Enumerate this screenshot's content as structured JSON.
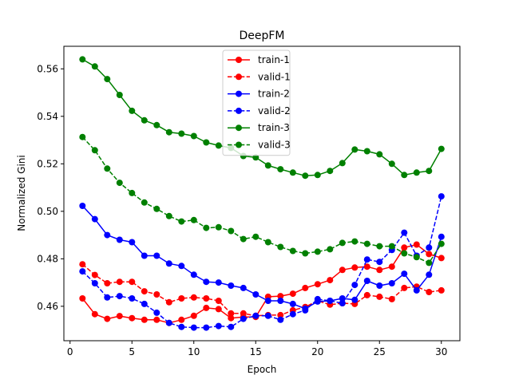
{
  "chart_data": {
    "type": "line",
    "title": "DeepFM",
    "xlabel": "Epoch",
    "ylabel": "Normalized Gini",
    "xlim": [
      -0.5,
      31.5
    ],
    "ylim": [
      0.4455,
      0.5695
    ],
    "xticks": [
      0,
      5,
      10,
      15,
      20,
      25,
      30
    ],
    "xtick_labels": [
      "0",
      "5",
      "10",
      "15",
      "20",
      "25",
      "30"
    ],
    "yticks": [
      0.46,
      0.48,
      0.5,
      0.52,
      0.54,
      0.56
    ],
    "ytick_labels": [
      "0.46",
      "0.48",
      "0.50",
      "0.52",
      "0.54",
      "0.56"
    ],
    "grid": false,
    "legend_position": "upper-center",
    "x": [
      1,
      2,
      3,
      4,
      5,
      6,
      7,
      8,
      9,
      10,
      11,
      12,
      13,
      14,
      15,
      16,
      17,
      18,
      19,
      20,
      21,
      22,
      23,
      24,
      25,
      26,
      27,
      28,
      29,
      30
    ],
    "series": [
      {
        "name": "train-1",
        "color": "#ff0000",
        "dash": "solid",
        "values": [
          0.4633,
          0.4567,
          0.4547,
          0.4559,
          0.455,
          0.4543,
          0.4543,
          0.453,
          0.4543,
          0.456,
          0.4593,
          0.4588,
          0.455,
          0.4555,
          0.4555,
          0.464,
          0.4643,
          0.4653,
          0.4677,
          0.4693,
          0.471,
          0.4753,
          0.4763,
          0.4767,
          0.4753,
          0.4767,
          0.4847,
          0.486,
          0.482,
          0.4803
        ]
      },
      {
        "name": "valid-1",
        "color": "#ff0000",
        "dash": "dashed",
        "values": [
          0.4777,
          0.4732,
          0.4697,
          0.4703,
          0.4703,
          0.4663,
          0.465,
          0.4617,
          0.4633,
          0.4637,
          0.4633,
          0.4623,
          0.457,
          0.457,
          0.456,
          0.4563,
          0.4563,
          0.4583,
          0.4597,
          0.4623,
          0.4607,
          0.4613,
          0.461,
          0.4647,
          0.464,
          0.463,
          0.4677,
          0.4683,
          0.466,
          0.4667
        ]
      },
      {
        "name": "train-2",
        "color": "#0000ff",
        "dash": "solid",
        "values": [
          0.5023,
          0.4967,
          0.49,
          0.488,
          0.487,
          0.4813,
          0.4813,
          0.478,
          0.477,
          0.4733,
          0.4703,
          0.47,
          0.4687,
          0.4677,
          0.465,
          0.4623,
          0.4623,
          0.461,
          0.459,
          0.462,
          0.4623,
          0.4633,
          0.4627,
          0.4707,
          0.4687,
          0.4697,
          0.4737,
          0.4667,
          0.4733,
          0.4893
        ]
      },
      {
        "name": "valid-2",
        "color": "#0000ff",
        "dash": "dashed",
        "values": [
          0.4747,
          0.4697,
          0.4637,
          0.4643,
          0.4633,
          0.461,
          0.4573,
          0.453,
          0.4513,
          0.451,
          0.451,
          0.4517,
          0.4513,
          0.4547,
          0.456,
          0.456,
          0.4543,
          0.4567,
          0.4583,
          0.463,
          0.4623,
          0.4613,
          0.469,
          0.4797,
          0.4787,
          0.4837,
          0.491,
          0.4813,
          0.4847,
          0.5063
        ]
      },
      {
        "name": "train-3",
        "color": "#008000",
        "dash": "solid",
        "values": [
          0.564,
          0.561,
          0.5557,
          0.549,
          0.5423,
          0.5383,
          0.5363,
          0.5333,
          0.5327,
          0.5317,
          0.529,
          0.5277,
          0.5267,
          0.5233,
          0.5227,
          0.5193,
          0.5177,
          0.5163,
          0.515,
          0.5153,
          0.517,
          0.5203,
          0.526,
          0.5253,
          0.524,
          0.52,
          0.5153,
          0.5163,
          0.517,
          0.5263
        ]
      },
      {
        "name": "valid-3",
        "color": "#008000",
        "dash": "dashed",
        "values": [
          0.5313,
          0.5257,
          0.518,
          0.512,
          0.5077,
          0.5037,
          0.501,
          0.498,
          0.4957,
          0.4963,
          0.493,
          0.4933,
          0.4917,
          0.4883,
          0.4893,
          0.487,
          0.485,
          0.4833,
          0.4823,
          0.483,
          0.484,
          0.4867,
          0.4873,
          0.4863,
          0.4853,
          0.4853,
          0.4823,
          0.4807,
          0.4783,
          0.4863
        ]
      }
    ]
  }
}
